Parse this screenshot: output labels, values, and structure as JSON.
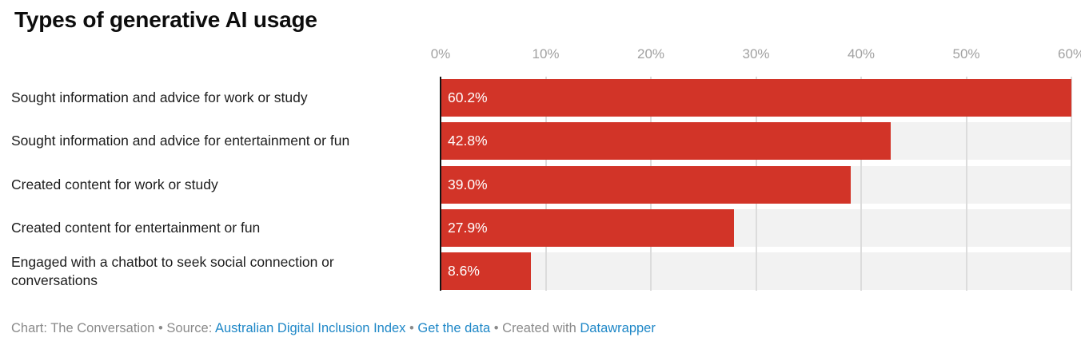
{
  "title": "Types of generative AI usage",
  "chart_data": {
    "type": "bar",
    "orientation": "horizontal",
    "title": "Types of generative AI usage",
    "categories": [
      "Sought information and advice for work or study",
      "Sought information and advice for entertainment or fun",
      "Created content for work or study",
      "Created content for entertainment or fun",
      "Engaged with a chatbot to seek social connection or conversations"
    ],
    "values": [
      60.2,
      42.8,
      39.0,
      27.9,
      8.6
    ],
    "value_labels": [
      "60.2%",
      "42.8%",
      "39.0%",
      "27.9%",
      "8.6%"
    ],
    "x_ticks": [
      "0%",
      "10%",
      "20%",
      "30%",
      "40%",
      "50%",
      "60%"
    ],
    "xlim": [
      0,
      60
    ],
    "grid": true,
    "legend": "none",
    "bar_color": "#d23428",
    "track_color": "#f2f2f2",
    "gridline_color": "#dcdcdc",
    "axis_line_color": "#141414",
    "tick_label_color": "#a1a1a1",
    "value_label_color": "#ffffff"
  },
  "footer": {
    "parts": [
      {
        "text": "Chart: The Conversation",
        "link": false,
        "name": "footer-chart-credit"
      },
      {
        "text": " • ",
        "link": false,
        "name": "footer-separator"
      },
      {
        "text": "Source: ",
        "link": false,
        "name": "footer-source-label"
      },
      {
        "text": "Australian Digital Inclusion Index",
        "link": true,
        "name": "source-link"
      },
      {
        "text": " • ",
        "link": false,
        "name": "footer-separator"
      },
      {
        "text": "Get the data",
        "link": true,
        "name": "get-data-link"
      },
      {
        "text": " • ",
        "link": false,
        "name": "footer-separator"
      },
      {
        "text": "Created with ",
        "link": false,
        "name": "footer-created-with"
      },
      {
        "text": "Datawrapper",
        "link": true,
        "name": "datawrapper-link"
      }
    ],
    "link_color": "#1e87c7",
    "text_color": "#8a8a8a"
  }
}
